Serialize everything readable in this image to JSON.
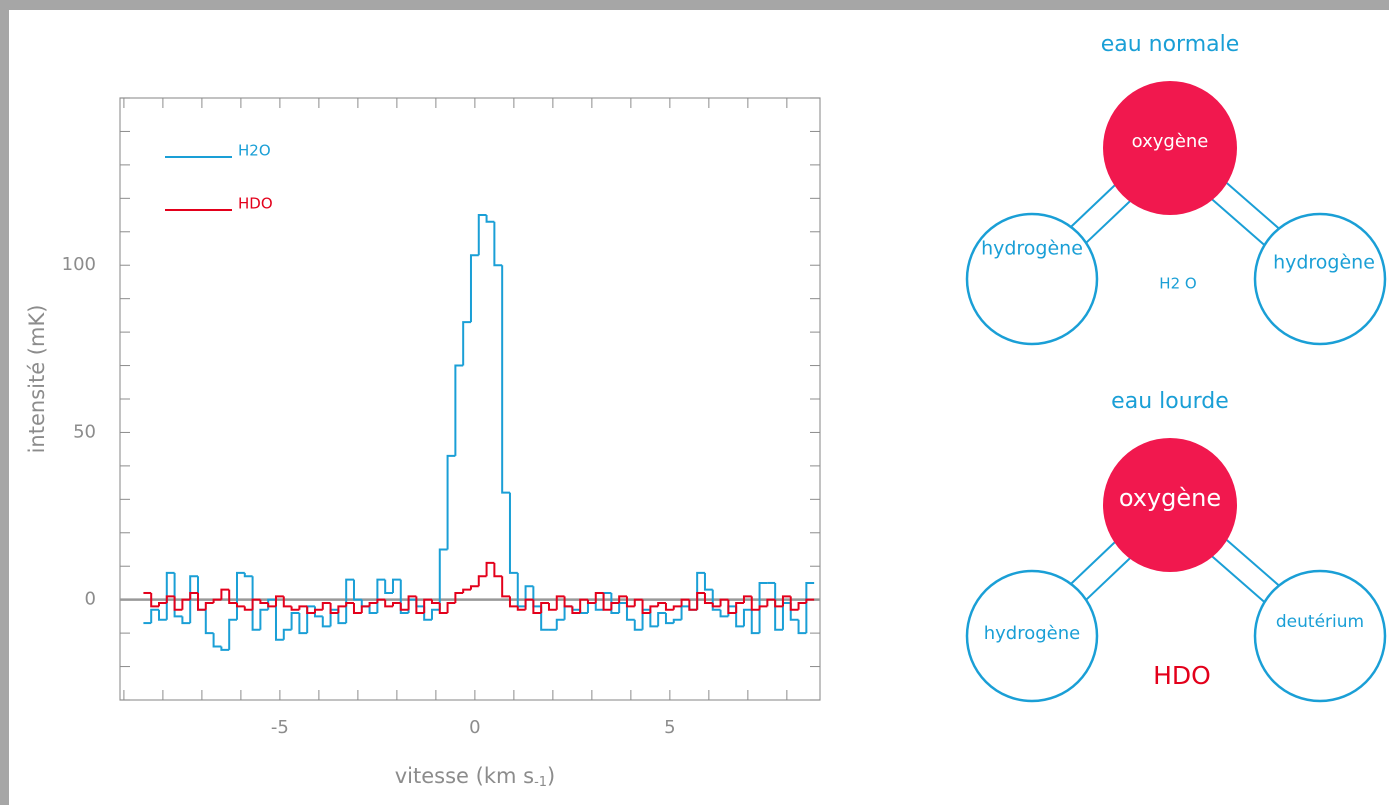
{
  "chart_data": {
    "type": "step",
    "ylabel": "intensité (mK)",
    "xlabel": {
      "text": "vitesse (km s",
      "sub": "-1",
      "end": ")"
    },
    "xlim": [
      -9.1,
      8.85
    ],
    "ylim": [
      -30,
      150
    ],
    "xticks": [
      -5,
      0,
      5
    ],
    "yticks": [
      0,
      50,
      100
    ],
    "xminorticks": [
      -9,
      -8,
      -7,
      -6,
      -5,
      -4,
      -3,
      -2,
      -1,
      0,
      1,
      2,
      3,
      4,
      5,
      6,
      7,
      8
    ],
    "yminorticks": [
      -30,
      -20,
      -10,
      0,
      10,
      20,
      30,
      40,
      50,
      60,
      70,
      80,
      90,
      100,
      110,
      120,
      130,
      140,
      150
    ],
    "zero_line": true,
    "x": [
      -8.4,
      -8.2,
      -8.0,
      -7.8,
      -7.6,
      -7.4,
      -7.2,
      -7.0,
      -6.8,
      -6.6,
      -6.4,
      -6.2,
      -6.0,
      -5.8,
      -5.6,
      -5.4,
      -5.2,
      -5.0,
      -4.8,
      -4.6,
      -4.4,
      -4.2,
      -4.0,
      -3.8,
      -3.6,
      -3.4,
      -3.2,
      -3.0,
      -2.8,
      -2.6,
      -2.4,
      -2.2,
      -2.0,
      -1.8,
      -1.6,
      -1.4,
      -1.2,
      -1.0,
      -0.8,
      -0.6,
      -0.4,
      -0.2,
      0.0,
      0.2,
      0.4,
      0.6,
      0.8,
      1.0,
      1.2,
      1.4,
      1.6,
      1.8,
      2.0,
      2.2,
      2.4,
      2.6,
      2.8,
      3.0,
      3.2,
      3.4,
      3.6,
      3.8,
      4.0,
      4.2,
      4.4,
      4.6,
      4.8,
      5.0,
      5.2,
      5.4,
      5.6,
      5.8,
      6.0,
      6.2,
      6.4,
      6.6,
      6.8,
      7.0,
      7.2,
      7.4,
      7.6,
      7.8,
      8.0,
      8.2,
      8.4,
      8.6
    ],
    "series": [
      {
        "name": "H2O",
        "color": "#1a9fd6",
        "values": [
          -7,
          -3,
          -6,
          8,
          -5,
          -7,
          7,
          -3,
          -10,
          -14,
          -15,
          -6,
          8,
          7,
          -9,
          -3,
          0,
          -12,
          -9,
          -4,
          -10,
          -2,
          -5,
          -8,
          -3,
          -7,
          6,
          0,
          -2,
          -4,
          6,
          2,
          6,
          -4,
          0,
          -2,
          -6,
          -3,
          15,
          43,
          70,
          83,
          103,
          115,
          113,
          100,
          32,
          8,
          -2,
          4,
          -2,
          -9,
          -9,
          -6,
          -2,
          -3,
          -4,
          -1,
          -3,
          2,
          -4,
          -1,
          -6,
          -9,
          -3,
          -8,
          -4,
          -7,
          -6,
          -2,
          -3,
          8,
          3,
          -3,
          -5,
          -2,
          -8,
          -3,
          -10,
          5,
          5,
          -9,
          -1,
          -6,
          -10,
          5
        ]
      },
      {
        "name": "HDO",
        "color": "#e3001b",
        "values": [
          2,
          -2,
          -1,
          1,
          -3,
          0,
          2,
          -3,
          -1,
          0,
          3,
          -1,
          -2,
          -3,
          0,
          -1,
          -2,
          1,
          -2,
          -3,
          -2,
          -4,
          -3,
          -1,
          -4,
          -2,
          -1,
          -4,
          -2,
          -1,
          0,
          -2,
          -1,
          -3,
          1,
          -4,
          0,
          -1,
          -4,
          -1,
          2,
          3,
          4,
          7,
          11,
          7,
          1,
          -2,
          -3,
          0,
          -4,
          -1,
          -3,
          1,
          -2,
          -4,
          0,
          -1,
          2,
          -3,
          -1,
          1,
          -2,
          0,
          -4,
          -2,
          -1,
          -3,
          -2,
          0,
          -3,
          2,
          -1,
          -2,
          0,
          -4,
          -1,
          1,
          -3,
          -2,
          0,
          -2,
          1,
          -3,
          -1,
          0
        ]
      }
    ]
  },
  "diagrams": [
    {
      "title": "eau normale",
      "center": "oxygène",
      "left": "hydrogène",
      "right": "hydrogène",
      "formula": "H2 O"
    },
    {
      "title": "eau lourde",
      "center": "oxygène",
      "left": "hydrogène",
      "right": "deutérium",
      "formula": "HDO"
    }
  ]
}
